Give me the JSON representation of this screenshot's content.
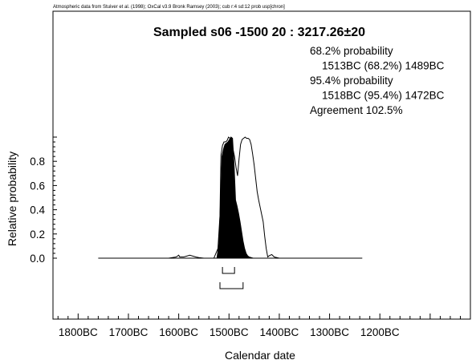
{
  "header_note": "Atmospheric data from Stuiver et al. (1998); OxCal v3.9 Bronk Ramsey (2003); cub r:4 sd:12 prob usp[chron]",
  "chart_data": {
    "type": "area",
    "title": "Sampled s06 -1500 20 : 3217.26±20",
    "xlabel": "Calendar date",
    "ylabel": "Relative probability",
    "xlim": [
      -1850,
      -1020
    ],
    "ylim_visible": [
      0.0,
      1.0
    ],
    "x_ticks": [
      {
        "value": -1800,
        "label": "1800BC"
      },
      {
        "value": -1700,
        "label": "1700BC"
      },
      {
        "value": -1600,
        "label": "1600BC"
      },
      {
        "value": -1500,
        "label": "1500BC"
      },
      {
        "value": -1400,
        "label": "1400BC"
      },
      {
        "value": -1300,
        "label": "1300BC"
      },
      {
        "value": -1200,
        "label": "1200BC"
      }
    ],
    "y_ticks": [
      {
        "value": 0.0,
        "label": "0.0"
      },
      {
        "value": 0.2,
        "label": "0.2"
      },
      {
        "value": 0.4,
        "label": "0.4"
      },
      {
        "value": 0.6,
        "label": "0.6"
      },
      {
        "value": 0.8,
        "label": "0.8"
      }
    ],
    "baseline_range": [
      -1760,
      -1235
    ],
    "prior_curve": {
      "x": [
        -1640,
        -1620,
        -1605,
        -1600,
        -1598,
        -1590,
        -1578,
        -1566,
        -1560,
        -1550,
        -1540,
        -1530,
        -1522,
        -1518,
        -1516,
        -1513,
        -1510,
        -1507,
        -1504,
        -1501,
        -1498,
        -1495,
        -1492,
        -1489,
        -1486,
        -1483,
        -1480,
        -1477,
        -1474,
        -1471,
        -1468,
        -1465,
        -1462,
        -1459,
        -1456,
        -1453,
        -1450,
        -1447,
        -1444,
        -1441,
        -1438,
        -1435,
        -1432,
        -1429,
        -1426,
        -1423,
        -1420,
        -1415,
        -1410,
        -1400
      ],
      "y": [
        0,
        0,
        0.01,
        0.025,
        0.01,
        0.01,
        0.025,
        0.01,
        0.005,
        0,
        0,
        0,
        0.08,
        0.35,
        0.85,
        0.93,
        0.96,
        0.96,
        0.97,
        1.0,
        0.99,
        0.97,
        0.9,
        0.84,
        0.75,
        0.68,
        0.82,
        0.94,
        0.98,
        0.99,
        1.0,
        0.99,
        0.99,
        0.98,
        0.94,
        0.86,
        0.77,
        0.66,
        0.55,
        0.48,
        0.42,
        0.36,
        0.3,
        0.18,
        0.08,
        0.01,
        0.02,
        0.03,
        0.01,
        0
      ]
    },
    "posterior_curve": {
      "x": [
        -1524,
        -1520,
        -1517,
        -1514,
        -1511,
        -1508,
        -1505,
        -1502,
        -1499,
        -1496,
        -1493,
        -1490,
        -1487,
        -1484,
        -1481,
        -1478,
        -1475,
        -1472,
        -1469,
        -1466,
        -1463,
        -1460,
        -1456,
        -1452
      ],
      "y": [
        0,
        0.12,
        0.45,
        0.84,
        0.9,
        0.94,
        0.95,
        0.96,
        0.98,
        1.0,
        0.99,
        0.78,
        0.48,
        0.43,
        0.37,
        0.3,
        0.22,
        0.14,
        0.08,
        0.04,
        0.02,
        0.01,
        0.005,
        0
      ]
    },
    "range_bars": [
      {
        "name": "68.2%",
        "from": -1513,
        "to": -1489
      },
      {
        "name": "95.4%",
        "from": -1518,
        "to": -1472
      }
    ],
    "info_lines": [
      "68.2% probability",
      "  1513BC (68.2%) 1489BC",
      "95.4% probability",
      "  1518BC (95.4%) 1472BC",
      "Agreement 102.5%"
    ]
  }
}
